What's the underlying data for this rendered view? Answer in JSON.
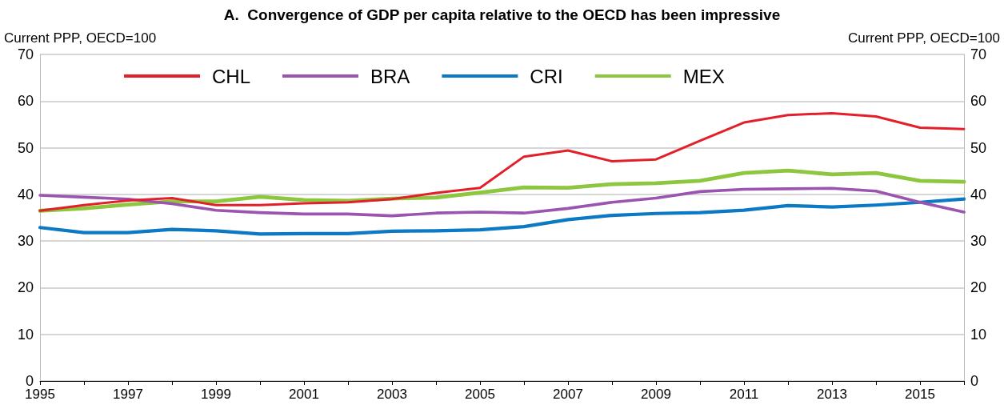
{
  "chart_data": {
    "type": "line",
    "title": "A.  Convergence of GDP per capita relative to the OECD has been impressive",
    "ylabel": "Current PPP, OECD=100",
    "y2label": "Current PPP, OECD=100",
    "categories": [
      "1995",
      null,
      "1997",
      null,
      "1999",
      null,
      "2001",
      null,
      "2003",
      null,
      "2005",
      null,
      "2007",
      null,
      "2009",
      null,
      "2011",
      null,
      "2013",
      null,
      "2015",
      null
    ],
    "series": [
      {
        "name": "CHL",
        "color": "#e3202a",
        "values": [
          36.5,
          37.7,
          38.7,
          39.2,
          37.7,
          37.7,
          38.1,
          38.3,
          39.0,
          40.3,
          41.4,
          48.1,
          49.4,
          47.1,
          47.5,
          51.5,
          55.4,
          57.0,
          57.4,
          56.7,
          54.3,
          54.0
        ]
      },
      {
        "name": "BRA",
        "color": "#9b55b0",
        "values": [
          39.8,
          39.4,
          39.0,
          38.0,
          36.6,
          36.1,
          35.8,
          35.8,
          35.4,
          36.0,
          36.2,
          36.0,
          37.0,
          38.3,
          39.2,
          40.6,
          41.1,
          41.2,
          41.3,
          40.7,
          38.3,
          36.2
        ]
      },
      {
        "name": "CRI",
        "color": "#0b79c4",
        "values": [
          32.9,
          31.8,
          31.8,
          32.5,
          32.2,
          31.5,
          31.6,
          31.6,
          32.1,
          32.2,
          32.4,
          33.1,
          34.6,
          35.5,
          35.9,
          36.1,
          36.6,
          37.6,
          37.3,
          37.7,
          38.3,
          39.0
        ]
      },
      {
        "name": "MEX",
        "color": "#8dc63f",
        "values": [
          36.5,
          37.0,
          37.8,
          38.5,
          38.5,
          39.5,
          38.8,
          38.6,
          39.1,
          39.3,
          40.4,
          41.5,
          41.4,
          42.2,
          42.4,
          42.9,
          44.6,
          45.1,
          44.3,
          44.6,
          42.9,
          42.7
        ]
      }
    ],
    "ylim": [
      0,
      70
    ],
    "yticks": [
      0,
      10,
      20,
      30,
      40,
      50,
      60,
      70
    ],
    "y2lim": [
      0,
      70
    ],
    "y2ticks": [
      0,
      10,
      20,
      30,
      40,
      50,
      60,
      70
    ],
    "grid": "y",
    "legend": "top left",
    "marker": "none",
    "line_style": "solid"
  }
}
